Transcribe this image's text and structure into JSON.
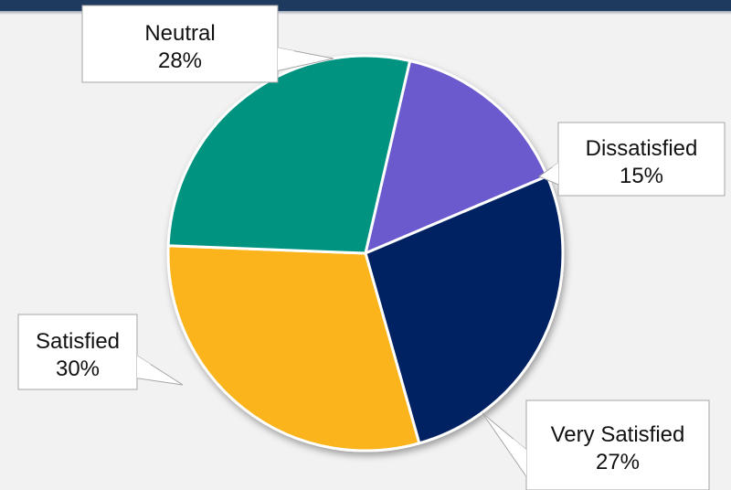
{
  "header": {
    "title_fragment": ""
  },
  "chart_data": {
    "type": "pie",
    "title": "",
    "slices": [
      {
        "label": "Dissatisfied",
        "value": 15,
        "value_label": "15%",
        "color": "#6a5acd"
      },
      {
        "label": "Very Satisfied",
        "value": 27,
        "value_label": "27%",
        "color": "#022163"
      },
      {
        "label": "Satisfied",
        "value": 30,
        "value_label": "30%",
        "color": "#fbb41b"
      },
      {
        "label": "Neutral",
        "value": 28,
        "value_label": "28%",
        "color": "#009380"
      }
    ],
    "legend": "none",
    "data_labels": "callouts"
  }
}
